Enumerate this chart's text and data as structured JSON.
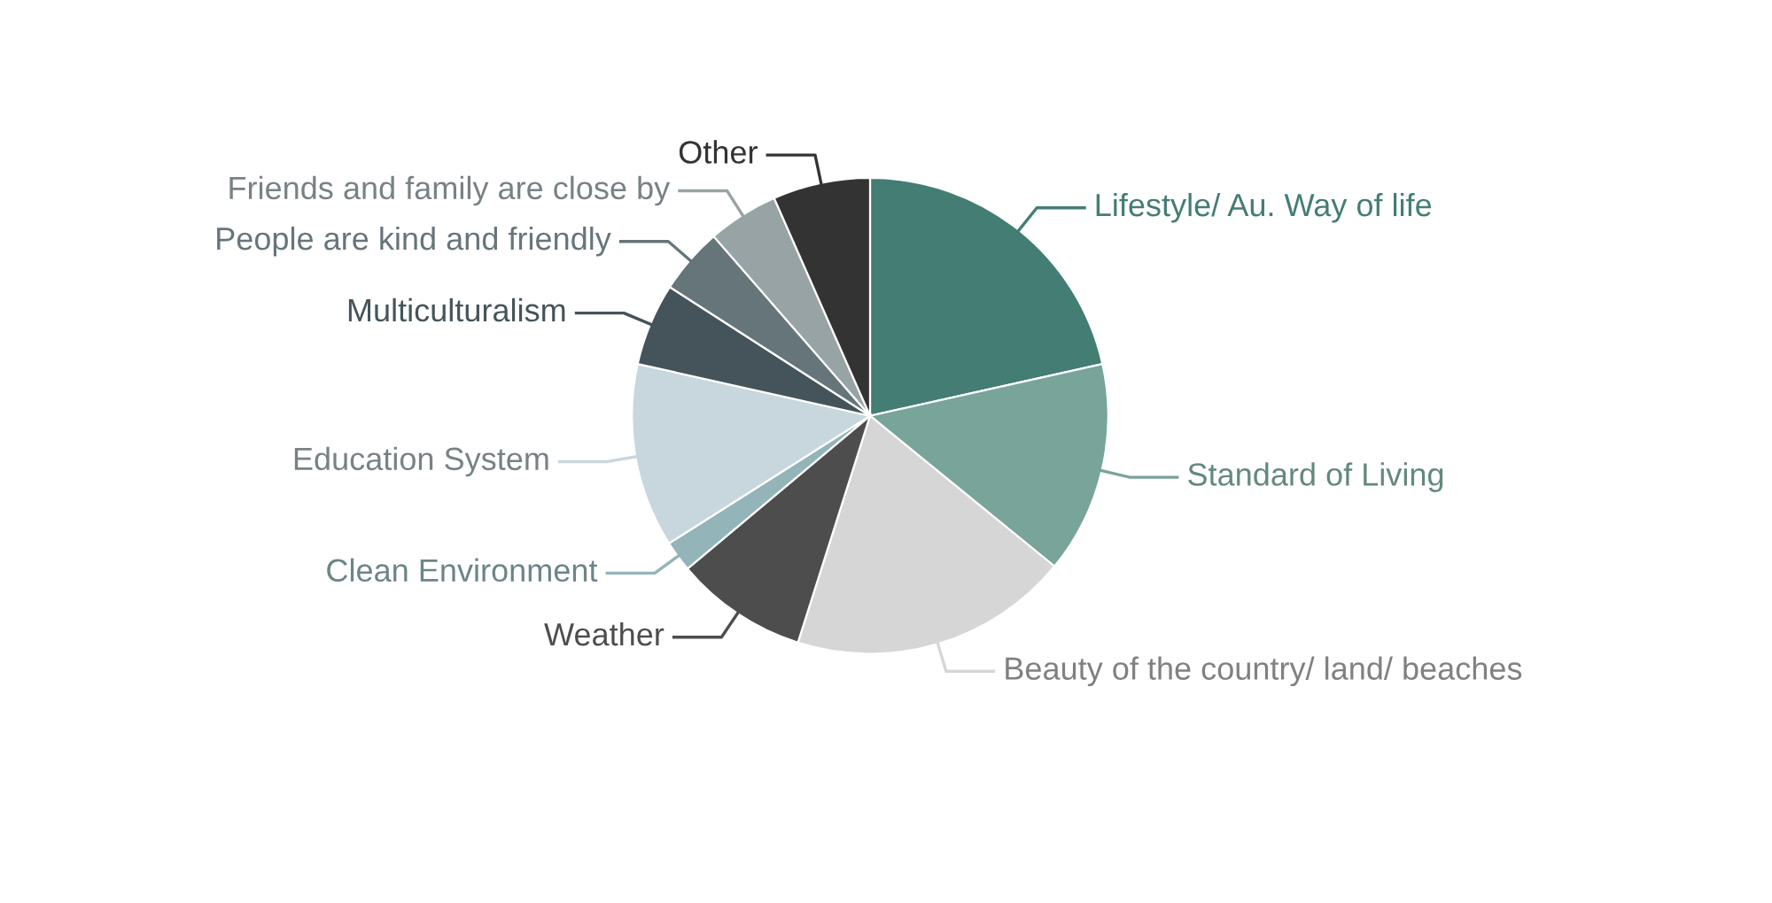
{
  "chart_data": {
    "type": "pie",
    "categories": [
      "Lifestyle/ Au. Way of life",
      "Standard of Living",
      "Beauty of the country/ land/ beaches",
      "Weather",
      "Clean Environment",
      "Education System",
      "Multiculturalism",
      "People are kind and friendly",
      "Friends and family are close by",
      "Other"
    ],
    "values": [
      21.5,
      14.4,
      19.0,
      9.0,
      2.1,
      12.5,
      5.6,
      4.5,
      4.8,
      6.6
    ],
    "colors": [
      "#437d74",
      "#78a49a",
      "#d6d6d6",
      "#4d4d4d",
      "#93b4b8",
      "#c8d7dd",
      "#45545a",
      "#66757a",
      "#98a3a6",
      "#333333"
    ]
  }
}
